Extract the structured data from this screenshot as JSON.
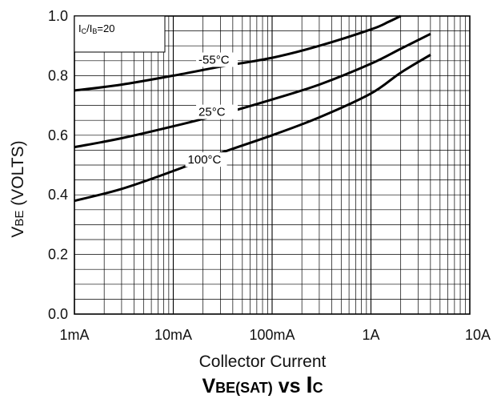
{
  "chart_data": {
    "type": "line",
    "title": "VBE(SAT) vs IC",
    "title_parts": {
      "main": "V",
      "main_sub": "BE(SAT)",
      "mid": " vs ",
      "end": "I",
      "end_sub": "C"
    },
    "xlabel": "Collector Current",
    "ylabel": "VBE (VOLTS)",
    "ylabel_parts": {
      "main": "V",
      "sub": "BE",
      "rest": " (VOLTS)"
    },
    "x_scale": "log",
    "xlim": [
      0.001,
      10
    ],
    "ylim": [
      0.0,
      1.0
    ],
    "x_ticks": [
      {
        "value": 0.001,
        "label": "1mA"
      },
      {
        "value": 0.01,
        "label": "10mA"
      },
      {
        "value": 0.1,
        "label": "100mA"
      },
      {
        "value": 1,
        "label": "1A"
      },
      {
        "value": 10,
        "label": "10A"
      }
    ],
    "y_ticks": [
      {
        "value": 0.0,
        "label": "0.0"
      },
      {
        "value": 0.2,
        "label": "0.2"
      },
      {
        "value": 0.4,
        "label": "0.4"
      },
      {
        "value": 0.6,
        "label": "0.6"
      },
      {
        "value": 0.8,
        "label": "0.8"
      },
      {
        "value": 1.0,
        "label": "1.0"
      }
    ],
    "grid": true,
    "annotation": "IC/IB=20",
    "annotation_parts": {
      "a": "I",
      "a_sub": "C",
      "mid": "/I",
      "b_sub": "B",
      "end": "=20"
    },
    "series": [
      {
        "name": "-55°C",
        "x": [
          0.001,
          0.003,
          0.01,
          0.03,
          0.1,
          0.3,
          1,
          1.5,
          2
        ],
        "y": [
          0.75,
          0.77,
          0.8,
          0.83,
          0.86,
          0.9,
          0.955,
          0.98,
          1.0
        ]
      },
      {
        "name": "25°C",
        "x": [
          0.001,
          0.003,
          0.01,
          0.03,
          0.1,
          0.3,
          1,
          2,
          4
        ],
        "y": [
          0.56,
          0.59,
          0.63,
          0.67,
          0.72,
          0.77,
          0.84,
          0.89,
          0.94
        ]
      },
      {
        "name": "100°C",
        "x": [
          0.001,
          0.003,
          0.01,
          0.03,
          0.1,
          0.3,
          1,
          2,
          4
        ],
        "y": [
          0.38,
          0.42,
          0.48,
          0.54,
          0.6,
          0.66,
          0.74,
          0.81,
          0.87
        ]
      }
    ]
  }
}
